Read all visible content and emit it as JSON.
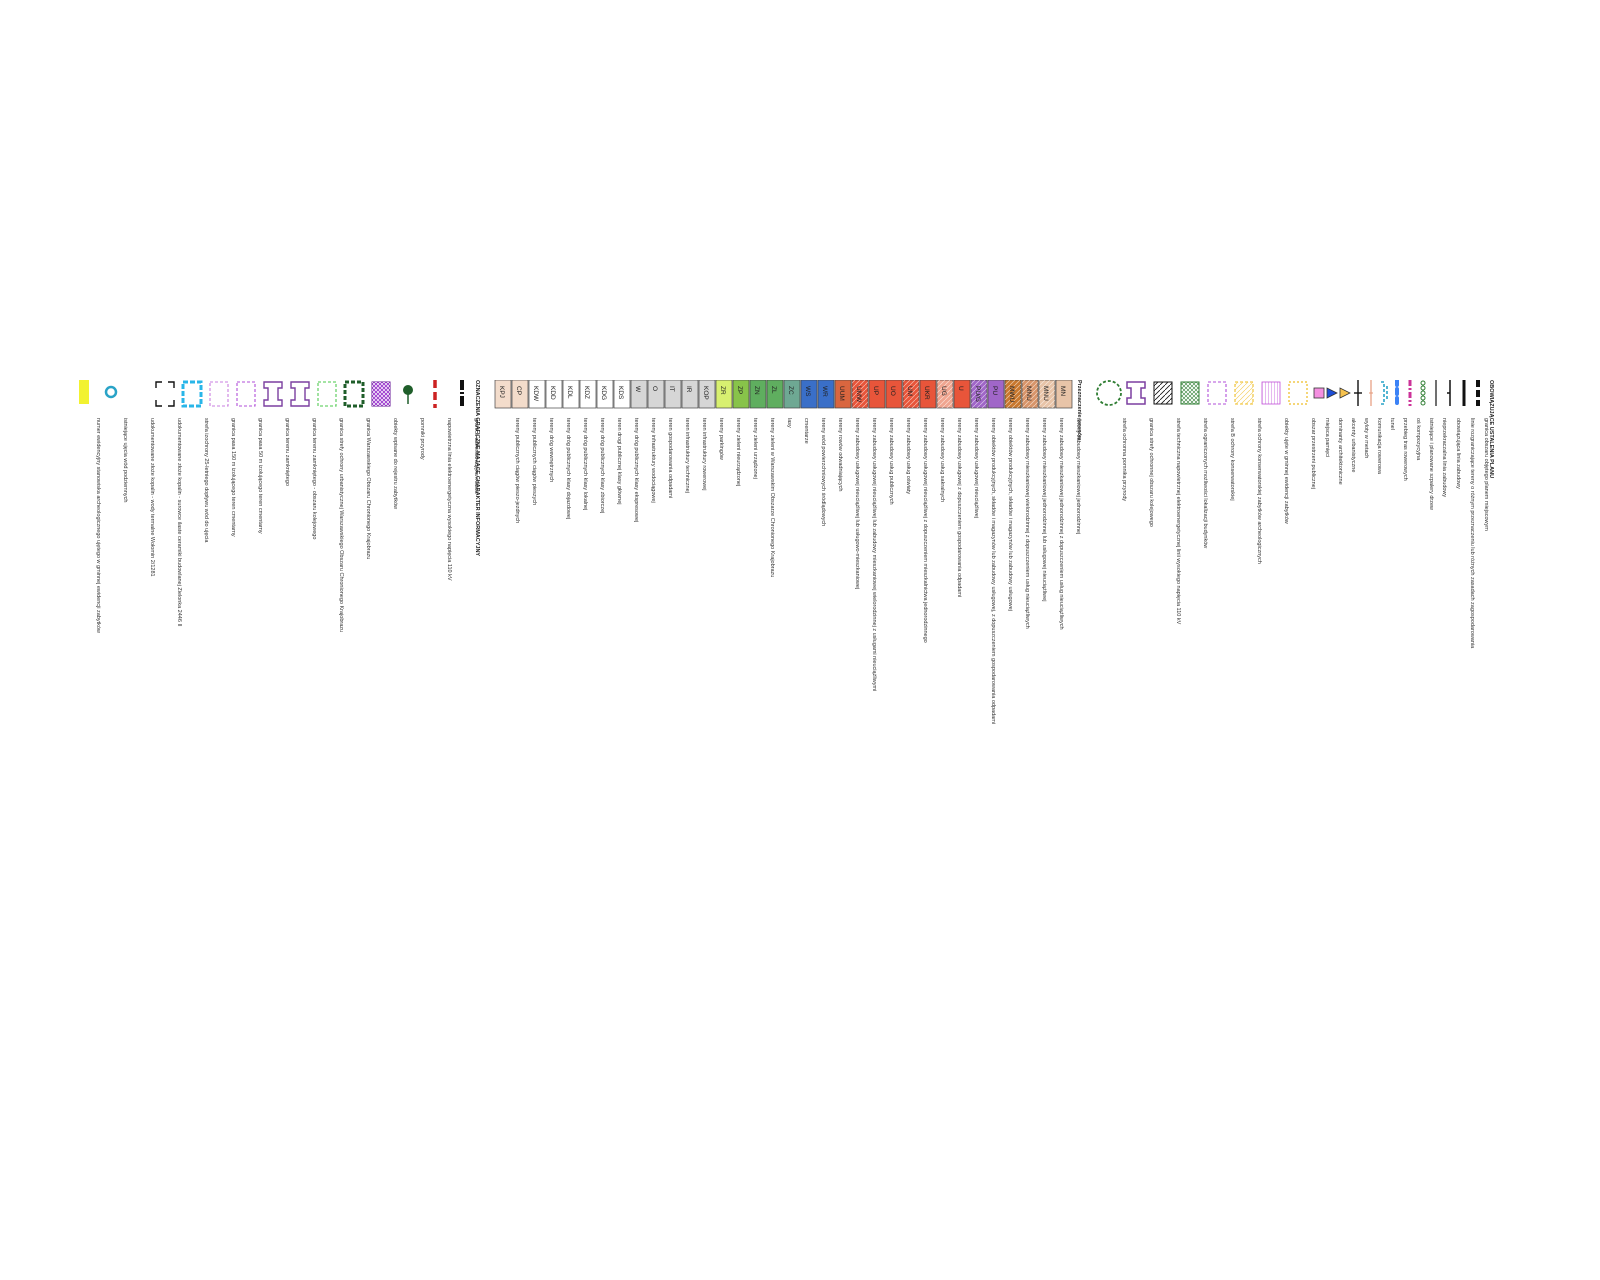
{
  "headers": {
    "ustalenia": "OBOWIĄZUJĄCE USTALENIA PLANU",
    "przeznaczenie": "Przeznaczenie terenów",
    "informacyjne": "OZNACZENIA GRAFICZNE MAJĄCE CHARAKTER INFORMACYJNY"
  },
  "lines_group": [
    {
      "label": "granica obszaru objętego planem miejscowym",
      "style": "dash-thick",
      "color": "#111111"
    },
    {
      "label": "linie rozgraniczające tereny o różnym przeznaczeniu lub różnych zasadach zagospodarowania",
      "style": "solid-thick",
      "color": "#111111"
    },
    {
      "label": "obowiązująca linia zabudowy",
      "style": "solid-tick",
      "color": "#111111"
    },
    {
      "label": "nieprzekraczalna linia zabudowy",
      "style": "solid-thin",
      "color": "#111111"
    },
    {
      "label": "istniejące i planowane szpalery drzew",
      "style": "circles",
      "color": "#2e7d32"
    },
    {
      "label": "oś kompozycyjna",
      "style": "dash-dot",
      "color": "#cc3399"
    },
    {
      "label": "przebieg tras rowerowych",
      "style": "dash-round",
      "color": "#3b82f6"
    },
    {
      "label": "tunel",
      "style": "bracket",
      "color": "#29a3c7"
    },
    {
      "label": "komunikacja rowerowa",
      "style": "thin-line",
      "color": "#e59a7a"
    },
    {
      "label": "wyloty w metach",
      "style": "t-line",
      "color": "#111111"
    },
    {
      "label": "akcenty urbanistyczne",
      "style": "triangle",
      "color": "#f6c24e"
    },
    {
      "label": "dominanty architektoniczne",
      "style": "triangle",
      "color": "#1d4ed8"
    },
    {
      "label": "miejsca pamięci",
      "style": "square",
      "color": "#f48fe0"
    }
  ],
  "zones_group": [
    {
      "label": "obszar przestrzeni publicznej",
      "pattern": "dot-frame",
      "color": "#f2c94c"
    },
    {
      "label": "obiekty ujęte w gminnej ewidencji zabytków",
      "pattern": "vlines",
      "color": "#c04fd8"
    },
    {
      "label": "strefa ochrony konserwatorskiej zabytków archeologicznych",
      "pattern": "hatch-light",
      "color": "#f2c94c"
    },
    {
      "label": "strefa B ochrony konserwatorskiej",
      "pattern": "dash-frame",
      "color": "#b04fd8"
    },
    {
      "label": "strefa ograniczonych możliwości lokalizacji budynków",
      "pattern": "crosshatch",
      "color": "#2e7d32"
    },
    {
      "label": "strefa techniczna napowietrznej elektroenergetycznej linii wysokiego napięcia 110 kV",
      "pattern": "diag",
      "color": "#111111"
    },
    {
      "label": "granica strefy ochronnej obszaru kolejowego",
      "pattern": "notch-frame",
      "color": "#7b3fa0"
    },
    {
      "label": "strefa ochronna pomnika przyrody",
      "pattern": "circle-dash",
      "color": "#2e7d32"
    }
  ],
  "land_use": [
    {
      "code": "MN",
      "label": "tereny zabudowy mieszkaniowej jednorodzinnej",
      "color": "#e8c4a8",
      "hatch": false
    },
    {
      "code": "MNU",
      "label": "tereny zabudowy mieszkaniowej jednorodzinnej z dopuszczeniem usług nieuciążliwych",
      "color": "#e8c4a8",
      "hatch": true
    },
    {
      "code": "MNU",
      "label": "tereny zabudowy mieszkaniowej jednorodzinnej lub usługowej nieuciążliwej",
      "color": "#d8956a",
      "hatch": true
    },
    {
      "code": "MWU",
      "label": "tereny zabudowy mieszkaniowej wielorodzinnej z dopuszczeniem usług nieuciążliwych",
      "color": "#c9782e",
      "hatch": true
    },
    {
      "code": "PU",
      "label": "tereny obiektów produkcyjnych, składów i magazynów lub zabudowy usługowej",
      "color": "#a066c8",
      "hatch": false
    },
    {
      "code": "PU/G",
      "label": "tereny obiektów produkcyjnych, składów i magazynów lub zabudowy usługowej, z dopuszczeniem gospodarowania odpadami",
      "color": "#a066c8",
      "hatch": true
    },
    {
      "code": "U",
      "label": "tereny zabudowy usługowej nieuciążliwej",
      "color": "#e8553a",
      "hatch": false
    },
    {
      "code": "UG",
      "label": "tereny zabudowy usługowej z dopuszczeniem gospodarowania odpadami",
      "color": "#f0a590",
      "hatch": true
    },
    {
      "code": "UKR",
      "label": "tereny zabudowy usług sakralnych",
      "color": "#e8553a",
      "hatch": false
    },
    {
      "code": "UM",
      "label": "tereny zabudowy usługowej nieuciążliwej z dopuszczeniem mieszkalnictwa jednorodzinnego",
      "color": "#e8553a",
      "hatch": true
    },
    {
      "code": "UO",
      "label": "tereny zabudowy usług oświaty",
      "color": "#e8553a",
      "hatch": false
    },
    {
      "code": "UP",
      "label": "tereny zabudowy usług publicznych",
      "color": "#e8553a",
      "hatch": false
    },
    {
      "code": "UMW",
      "label": "tereny zabudowy usługowej nieuciążliwej lub zabudowy mieszkaniowej wielorodzinnej z usługami nieuciążliwymi",
      "color": "#e8553a",
      "hatch": true
    },
    {
      "code": "UUM",
      "label": "tereny zabudowy usługowej nieuciążliwej lub usługowo-mieszkaniowej",
      "color": "#d9663f",
      "hatch": false
    },
    {
      "code": "WR",
      "label": "tereny rowów odwadniających",
      "color": "#3a6fc8",
      "hatch": false
    },
    {
      "code": "WS",
      "label": "tereny wód powierzchniowych śródlądowych",
      "color": "#3a6fc8",
      "hatch": false
    },
    {
      "code": "ZC",
      "label": "cmentarze",
      "color": "#6ea893",
      "hatch": false
    },
    {
      "code": "ZL",
      "label": "lasy",
      "color": "#5fae5f",
      "hatch": false
    },
    {
      "code": "ZN",
      "label": "tereny zieleni w Warszawskim Obszarze Chronionego Krajobrazu",
      "color": "#5fae5f",
      "hatch": false
    },
    {
      "code": "ZP",
      "label": "tereny zieleni urządzonej",
      "color": "#88c34a",
      "hatch": false
    },
    {
      "code": "ZR",
      "label": "tereny zieleni nieurządzonej",
      "color": "#d8f070",
      "hatch": false
    },
    {
      "code": "KOP",
      "label": "tereny parkingów",
      "color": "#d6d6d6",
      "hatch": false
    },
    {
      "code": "IR",
      "label": "teren infrastruktury rowerowej",
      "color": "#d6d6d6",
      "hatch": false
    },
    {
      "code": "IT",
      "label": "teren infrastruktury technicznej",
      "color": "#d6d6d6",
      "hatch": false
    },
    {
      "code": "O",
      "label": "teren gospodarowania odpadami",
      "color": "#d6d6d6",
      "hatch": false
    },
    {
      "code": "W",
      "label": "tereny infrastruktury wodociągowej",
      "color": "#d6d6d6",
      "hatch": false
    },
    {
      "code": "KDS",
      "label": "tereny dróg publicznych klasy ekspresowej",
      "color": "#ffffff",
      "hatch": false
    },
    {
      "code": "KDG",
      "label": "teren drogi publicznej klasy głównej",
      "color": "#ffffff",
      "hatch": false
    },
    {
      "code": "KDZ",
      "label": "tereny dróg publicznych klasy zbiorczej",
      "color": "#ffffff",
      "hatch": false
    },
    {
      "code": "KDL",
      "label": "tereny dróg publicznych klasy lokalnej",
      "color": "#ffffff",
      "hatch": false
    },
    {
      "code": "KDD",
      "label": "tereny dróg publicznych klasy dojazdowej",
      "color": "#ffffff",
      "hatch": false
    },
    {
      "code": "KDW",
      "label": "tereny dróg wewnętrznych",
      "color": "#ffffff",
      "hatch": false
    },
    {
      "code": "CP",
      "label": "tereny publicznych ciągów pieszych",
      "color": "#f3dccb",
      "hatch": false
    },
    {
      "code": "KPJ",
      "label": "tereny publicznych ciągów pieszo-jezdnych",
      "color": "#f3dccb",
      "hatch": false
    }
  ],
  "info_group": [
    {
      "label": "granica administracyjna miasta",
      "symbol": "admin-line",
      "color": "#111111"
    },
    {
      "label": "napowietrzna linia elektroenergetyczna wysokiego napięcia 110 kV",
      "symbol": "power-line",
      "color": "#cc2222"
    },
    {
      "label": "pomniki przyrody",
      "symbol": "tree",
      "color": "#1f5e2a"
    },
    {
      "label": "obiekty wpisane do rejestru zabytków",
      "symbol": "hatch-box",
      "color": "#9933cc"
    },
    {
      "label": "granica Warszawskiego Obszaru Chronionego Krajobrazu",
      "symbol": "green-frame",
      "color": "#1f5e2a"
    },
    {
      "label": "granica strefy ochrony urbanistycznej Warszawskiego Obszaru Chronionego Krajobrazu",
      "symbol": "light-frame",
      "color": "#6dd36d"
    },
    {
      "label": "granica terenu zamkniętego - obszaru kolejowego",
      "symbol": "notch-frame",
      "color": "#7b3fa0"
    },
    {
      "label": "granica terenu zamkniętego",
      "symbol": "notch-frame-2",
      "color": "#7b3fa0"
    },
    {
      "label": "granica pasa 50 m izolującego teren cmentarny",
      "symbol": "dash-frame",
      "color": "#b04fd8"
    },
    {
      "label": "granica pasa 150 m izolującego teren cmentarny",
      "symbol": "dash-frame",
      "color": "#c97fe0"
    },
    {
      "label": "strefa izochrony 25-letniego dopływu wód do ujęcia",
      "symbol": "cyan-frame",
      "color": "#29b6e8"
    },
    {
      "label": "udokumentowane złoże kopalin - surowce ilaste ceramiki budowlanej Zielonka 2446 II",
      "symbol": "corner-frame",
      "color": "#111111"
    },
    {
      "label": "udokumentowane złoże kopalin - wody termalne Wołomin 2/1281",
      "symbol": "none",
      "color": "#111111"
    },
    {
      "label": "istniejące ujęcia wód podziemnych",
      "symbol": "well",
      "color": "#29a3c7"
    },
    {
      "label": "numer ewidencyjny stanowiska archeologicznego ujętego w gminnej ewidencji zabytków",
      "symbol": "yellow-mark",
      "color": "#f2f230"
    }
  ]
}
